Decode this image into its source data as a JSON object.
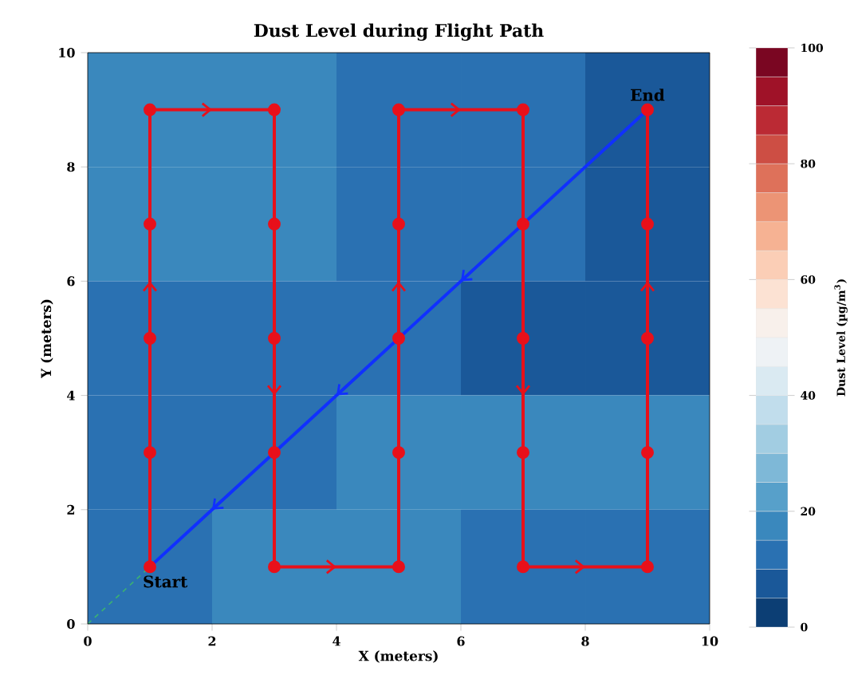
{
  "chart_data": {
    "type": "heatmap",
    "title": "Dust Level during Flight Path",
    "xlabel": "X (meters)",
    "ylabel": "Y (meters)",
    "clabel": "Dust Level (µg/m$^{3}$)",
    "xlim": [
      0,
      10
    ],
    "ylim": [
      0,
      10
    ],
    "xticks": [
      0,
      2,
      4,
      6,
      8,
      10
    ],
    "yticks": [
      0,
      2,
      4,
      6,
      8,
      10
    ],
    "clim": [
      0,
      100
    ],
    "cticks": [
      0,
      20,
      40,
      60,
      80,
      100
    ],
    "cells": [
      [
        17,
        17,
        12,
        12,
        7
      ],
      [
        17,
        17,
        12,
        12,
        7
      ],
      [
        12,
        12,
        12,
        7,
        7
      ],
      [
        12,
        12,
        17,
        17,
        17
      ],
      [
        12,
        17,
        17,
        12,
        12
      ]
    ],
    "series": [
      {
        "type": "line",
        "color": "#e8101a",
        "marker": "circle",
        "x": [
          1,
          1,
          1,
          1,
          1,
          3,
          3,
          3,
          3,
          3,
          5,
          5,
          5,
          5,
          5,
          7,
          7,
          7,
          7,
          7,
          9,
          9,
          9,
          9,
          9
        ],
        "values": [
          1,
          3,
          5,
          7,
          9,
          9,
          7,
          5,
          3,
          1,
          1,
          3,
          5,
          7,
          9,
          9,
          7,
          5,
          3,
          1,
          1,
          3,
          5,
          7,
          9
        ]
      },
      {
        "type": "line",
        "color": "#1030ff",
        "x": [
          9,
          1
        ],
        "values": [
          9,
          1
        ]
      },
      {
        "type": "line",
        "color": "#3cb371",
        "line_style": "dashed",
        "x": [
          0,
          1
        ],
        "values": [
          0,
          1
        ]
      }
    ],
    "annotations": [
      {
        "text": "Start",
        "x": 1,
        "y": 1
      },
      {
        "text": "End",
        "x": 9,
        "y": 9
      }
    ]
  }
}
